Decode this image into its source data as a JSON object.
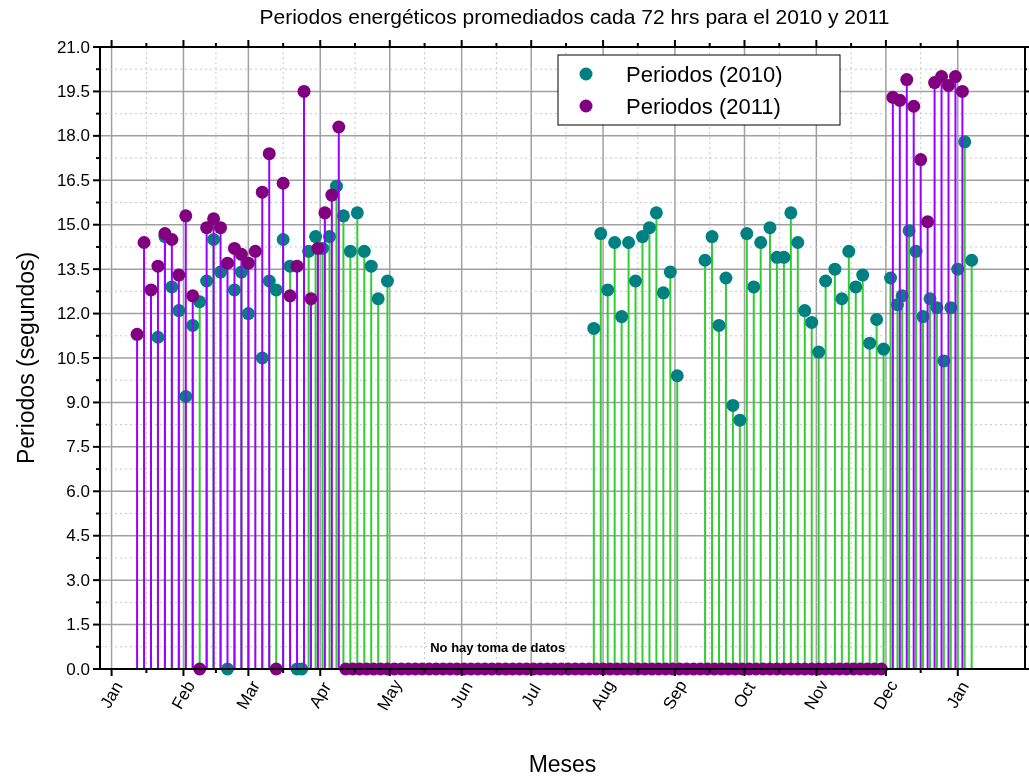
{
  "chart_data": {
    "type": "lollipop",
    "title": "Periodos energéticos promediados cada 72 hrs para el 2010 y 2011",
    "xlabel": "Meses",
    "ylabel": "Periodos (segundos)",
    "xlim": [
      "2009-12-27",
      "2011-01-30"
    ],
    "ylim": [
      0,
      21
    ],
    "xticks": [
      {
        "value": "2010-01-01",
        "label": "Jan"
      },
      {
        "value": "2010-01-16",
        "label": null
      },
      {
        "value": "2010-02-01",
        "label": "Feb"
      },
      {
        "value": "2010-02-15",
        "label": null
      },
      {
        "value": "2010-03-01",
        "label": "Mar"
      },
      {
        "value": "2010-03-16",
        "label": null
      },
      {
        "value": "2010-04-01",
        "label": "Apr"
      },
      {
        "value": "2010-04-16",
        "label": null
      },
      {
        "value": "2010-05-01",
        "label": "May"
      },
      {
        "value": "2010-05-16",
        "label": null
      },
      {
        "value": "2010-06-01",
        "label": "Jun"
      },
      {
        "value": "2010-06-16",
        "label": null
      },
      {
        "value": "2010-07-01",
        "label": "Jul"
      },
      {
        "value": "2010-07-16",
        "label": null
      },
      {
        "value": "2010-08-01",
        "label": "Aug"
      },
      {
        "value": "2010-08-16",
        "label": null
      },
      {
        "value": "2010-09-01",
        "label": "Sep"
      },
      {
        "value": "2010-09-16",
        "label": null
      },
      {
        "value": "2010-10-01",
        "label": "Oct"
      },
      {
        "value": "2010-10-16",
        "label": null
      },
      {
        "value": "2010-11-01",
        "label": "Nov"
      },
      {
        "value": "2010-11-16",
        "label": null
      },
      {
        "value": "2010-12-01",
        "label": "Dec"
      },
      {
        "value": "2010-12-16",
        "label": null
      },
      {
        "value": "2011-01-01",
        "label": "Jan"
      }
    ],
    "yticks": [
      {
        "value": 0,
        "label": "0.0"
      },
      {
        "value": 0.75,
        "label": null
      },
      1.5,
      {
        "value": 2.25,
        "label": null
      },
      {
        "value": 3,
        "label": "3.0"
      },
      {
        "value": 3.75,
        "label": null
      },
      4.5,
      {
        "value": 5.25,
        "label": null
      },
      {
        "value": 6,
        "label": "6.0"
      },
      {
        "value": 6.75,
        "label": null
      },
      7.5,
      {
        "value": 8.25,
        "label": null
      },
      {
        "value": 9,
        "label": "9.0"
      },
      {
        "value": 9.75,
        "label": null
      },
      10.5,
      {
        "value": 11.25,
        "label": null
      },
      {
        "value": 12,
        "label": "12.0"
      },
      {
        "value": 12.75,
        "label": null
      },
      13.5,
      {
        "value": 14.25,
        "label": null
      },
      {
        "value": 15,
        "label": "15.0"
      },
      {
        "value": 15.75,
        "label": null
      },
      16.5,
      {
        "value": 17.25,
        "label": null
      },
      {
        "value": 18,
        "label": "18.0"
      },
      {
        "value": 18.75,
        "label": null
      },
      19.5,
      {
        "value": 20.25,
        "label": null
      },
      {
        "value": 21,
        "label": "21.0"
      }
    ],
    "grid": true,
    "legend": "top right",
    "marker": "circle",
    "annotations": [
      "No hay toma de datos"
    ],
    "series": [
      {
        "name": "Periodos (2010)",
        "color": "#008080",
        "x": [
          "2010-01-21",
          "2010-01-24",
          "2010-01-27",
          "2010-01-30",
          "2010-02-02",
          "2010-02-05",
          "2010-02-08",
          "2010-02-11",
          "2010-02-14",
          "2010-02-17",
          "2010-02-20",
          "2010-02-23",
          "2010-02-26",
          "2010-03-01",
          "2010-03-07",
          "2010-03-10",
          "2010-03-13",
          "2010-03-16",
          "2010-03-19",
          "2010-03-22",
          "2010-03-24",
          "2010-03-27",
          "2010-03-30",
          "2010-04-02",
          "2010-04-05",
          "2010-04-08",
          "2010-04-11",
          "2010-04-14",
          "2010-04-17",
          "2010-04-20",
          "2010-04-23",
          "2010-04-26",
          "2010-04-30",
          "2010-07-28",
          "2010-07-31",
          "2010-08-03",
          "2010-08-06",
          "2010-08-09",
          "2010-08-12",
          "2010-08-15",
          "2010-08-18",
          "2010-08-21",
          "2010-08-24",
          "2010-08-27",
          "2010-08-30",
          "2010-09-02",
          "2010-09-14",
          "2010-09-17",
          "2010-09-20",
          "2010-09-23",
          "2010-09-26",
          "2010-09-29",
          "2010-10-02",
          "2010-10-05",
          "2010-10-08",
          "2010-10-12",
          "2010-10-15",
          "2010-10-18",
          "2010-10-21",
          "2010-10-24",
          "2010-10-27",
          "2010-10-30",
          "2010-11-02",
          "2010-11-05",
          "2010-11-09",
          "2010-11-12",
          "2010-11-15",
          "2010-11-18",
          "2010-11-21",
          "2010-11-24",
          "2010-11-27",
          "2010-11-30",
          "2010-12-03",
          "2010-12-06",
          "2010-12-08",
          "2010-12-11",
          "2010-12-14",
          "2010-12-17",
          "2010-12-20",
          "2010-12-23",
          "2010-12-26",
          "2010-12-29",
          "2011-01-01",
          "2011-01-04",
          "2011-01-07"
        ],
        "values": [
          11.2,
          14.6,
          12.9,
          12.1,
          9.2,
          11.6,
          12.4,
          13.1,
          14.5,
          13.4,
          0,
          12.8,
          13.4,
          12.0,
          10.5,
          13.1,
          12.8,
          14.5,
          13.6,
          0,
          0,
          14.1,
          14.6,
          14.2,
          14.6,
          16.3,
          15.3,
          14.1,
          15.4,
          14.1,
          13.6,
          12.5,
          13.1,
          11.5,
          14.7,
          12.8,
          14.4,
          11.9,
          14.4,
          13.1,
          14.6,
          14.9,
          15.4,
          12.7,
          13.4,
          9.9,
          13.8,
          14.6,
          11.6,
          13.2,
          8.9,
          8.4,
          14.7,
          12.9,
          14.4,
          14.9,
          13.9,
          13.9,
          15.4,
          14.4,
          12.1,
          11.7,
          10.7,
          13.1,
          13.5,
          12.5,
          14.1,
          12.9,
          13.3,
          11.0,
          11.8,
          10.8,
          13.2,
          12.3,
          12.6,
          14.8,
          14.1,
          11.9,
          12.5,
          12.2,
          10.4,
          12.2,
          13.5,
          17.8,
          13.8
        ]
      },
      {
        "name": "Periodos (2011)",
        "color": "#800080",
        "x": [
          "2010-01-12",
          "2010-01-15",
          "2010-01-18",
          "2010-01-21",
          "2010-01-24",
          "2010-01-27",
          "2010-01-30",
          "2010-02-02",
          "2010-02-05",
          "2010-02-08",
          "2010-02-11",
          "2010-02-14",
          "2010-02-17",
          "2010-02-20",
          "2010-02-23",
          "2010-02-26",
          "2010-03-01",
          "2010-03-04",
          "2010-03-07",
          "2010-03-10",
          "2010-03-13",
          "2010-03-16",
          "2010-03-19",
          "2010-03-22",
          "2010-03-25",
          "2010-03-28",
          "2010-03-31",
          "2010-04-03",
          "2010-04-06",
          "2010-04-09",
          "2010-04-12",
          "2010-04-15",
          "2010-04-18",
          "2010-04-21",
          "2010-04-24",
          "2010-04-27",
          "2010-04-30",
          "2010-05-03",
          "2010-05-06",
          "2010-05-09",
          "2010-05-12",
          "2010-05-15",
          "2010-05-18",
          "2010-05-21",
          "2010-05-24",
          "2010-05-27",
          "2010-05-30",
          "2010-06-02",
          "2010-06-05",
          "2010-06-08",
          "2010-06-11",
          "2010-06-14",
          "2010-06-17",
          "2010-06-20",
          "2010-06-23",
          "2010-06-26",
          "2010-06-29",
          "2010-07-02",
          "2010-07-05",
          "2010-07-08",
          "2010-07-11",
          "2010-07-14",
          "2010-07-17",
          "2010-07-20",
          "2010-07-23",
          "2010-07-26",
          "2010-07-29",
          "2010-08-01",
          "2010-08-04",
          "2010-08-07",
          "2010-08-10",
          "2010-08-13",
          "2010-08-16",
          "2010-08-19",
          "2010-08-22",
          "2010-08-25",
          "2010-08-28",
          "2010-08-31",
          "2010-09-03",
          "2010-09-06",
          "2010-09-09",
          "2010-09-12",
          "2010-09-15",
          "2010-09-18",
          "2010-09-21",
          "2010-09-24",
          "2010-09-27",
          "2010-09-30",
          "2010-10-03",
          "2010-10-06",
          "2010-10-09",
          "2010-10-12",
          "2010-10-15",
          "2010-10-18",
          "2010-10-21",
          "2010-10-24",
          "2010-10-27",
          "2010-10-30",
          "2010-11-02",
          "2010-11-05",
          "2010-11-08",
          "2010-11-11",
          "2010-11-14",
          "2010-11-17",
          "2010-11-20",
          "2010-11-23",
          "2010-11-26",
          "2010-11-29",
          "2010-12-04",
          "2010-12-07",
          "2010-12-10",
          "2010-12-13",
          "2010-12-16",
          "2010-12-19",
          "2010-12-22",
          "2010-12-25",
          "2010-12-28",
          "2010-12-31",
          "2011-01-03"
        ],
        "values": [
          11.3,
          14.4,
          12.8,
          13.6,
          14.7,
          14.5,
          13.3,
          15.3,
          12.6,
          0,
          14.9,
          15.2,
          14.9,
          13.7,
          14.2,
          14.0,
          13.7,
          14.1,
          16.1,
          17.4,
          0,
          16.4,
          12.6,
          13.6,
          19.5,
          12.5,
          14.2,
          15.4,
          16.0,
          18.3,
          0,
          0,
          0,
          0,
          0,
          0,
          0,
          0,
          0,
          0,
          0,
          0,
          0,
          0,
          0,
          0,
          0,
          0,
          0,
          0,
          0,
          0,
          0,
          0,
          0,
          0,
          0,
          0,
          0,
          0,
          0,
          0,
          0,
          0,
          0,
          0,
          0,
          0,
          0,
          0,
          0,
          0,
          0,
          0,
          0,
          0,
          0,
          0,
          0,
          0,
          0,
          0,
          0,
          0,
          0,
          0,
          0,
          0,
          0,
          0,
          0,
          0,
          0,
          0,
          0,
          0,
          0,
          0,
          0,
          0,
          0,
          0,
          0,
          0,
          0,
          0,
          0,
          0,
          19.3,
          19.2,
          19.9,
          19.0,
          17.2,
          15.1,
          19.8,
          20.0,
          19.7,
          20.0,
          19.5
        ]
      }
    ]
  }
}
